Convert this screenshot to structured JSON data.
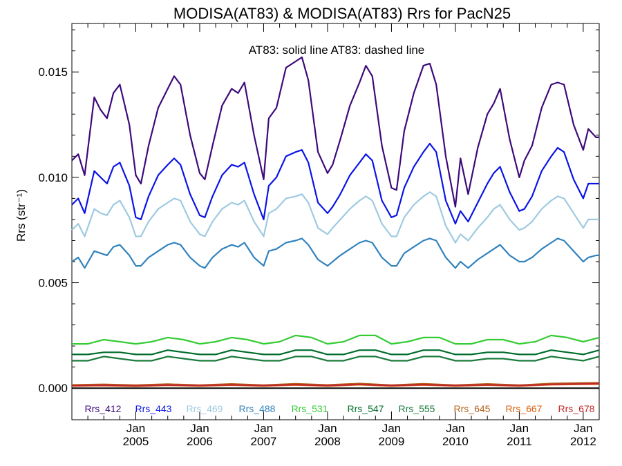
{
  "chart_data": {
    "type": "line",
    "title": "MODISA(AT83) & MODISA(AT83)  Rrs for PacN25",
    "annotation": "AT83: solid line   AT83: dashed line",
    "ylabel": "Rrs (str⁻¹)",
    "xlabel": "",
    "ylim": [
      -0.0015,
      0.0173
    ],
    "yticks": [
      0.0,
      0.005,
      0.01,
      0.015
    ],
    "ytick_labels": [
      "0.000",
      "0.005",
      "0.010",
      "0.015"
    ],
    "xlim": [
      2004.0,
      2012.25
    ],
    "xticks": [
      2005,
      2006,
      2007,
      2008,
      2009,
      2010,
      2011,
      2012
    ],
    "xtick_labels": [
      {
        "month": "Jan",
        "year": "2005"
      },
      {
        "month": "Jan",
        "year": "2006"
      },
      {
        "month": "Jan",
        "year": "2007"
      },
      {
        "month": "Jan",
        "year": "2008"
      },
      {
        "month": "Jan",
        "year": "2009"
      },
      {
        "month": "Jan",
        "year": "2010"
      },
      {
        "month": "Jan",
        "year": "2011"
      },
      {
        "month": "Jan",
        "year": "2012"
      }
    ],
    "zero_line": 0.0,
    "series": [
      {
        "name": "Rrs_412",
        "color": "#3d0a7a",
        "x": [
          2004.0,
          2004.1,
          2004.2,
          2004.35,
          2004.45,
          2004.55,
          2004.65,
          2004.75,
          2004.9,
          2005.0,
          2005.08,
          2005.2,
          2005.35,
          2005.5,
          2005.6,
          2005.7,
          2005.85,
          2006.0,
          2006.08,
          2006.2,
          2006.35,
          2006.5,
          2006.6,
          2006.7,
          2006.85,
          2007.0,
          2007.08,
          2007.2,
          2007.35,
          2007.5,
          2007.6,
          2007.7,
          2007.85,
          2008.0,
          2008.08,
          2008.2,
          2008.35,
          2008.5,
          2008.6,
          2008.7,
          2008.85,
          2009.0,
          2009.08,
          2009.2,
          2009.35,
          2009.5,
          2009.6,
          2009.7,
          2009.85,
          2010.0,
          2010.08,
          2010.2,
          2010.35,
          2010.5,
          2010.6,
          2010.7,
          2010.85,
          2011.0,
          2011.08,
          2011.2,
          2011.35,
          2011.5,
          2011.6,
          2011.7,
          2011.85,
          2012.0,
          2012.08,
          2012.2,
          2012.25
        ],
        "values": [
          0.0108,
          0.0111,
          0.0101,
          0.0138,
          0.0132,
          0.0128,
          0.014,
          0.0144,
          0.0125,
          0.0101,
          0.0097,
          0.0115,
          0.0133,
          0.0142,
          0.0148,
          0.0144,
          0.012,
          0.0102,
          0.0099,
          0.0115,
          0.0134,
          0.0142,
          0.014,
          0.0145,
          0.012,
          0.0099,
          0.0128,
          0.0133,
          0.0152,
          0.0155,
          0.0157,
          0.0146,
          0.0112,
          0.0102,
          0.0106,
          0.0118,
          0.0134,
          0.0145,
          0.0153,
          0.0148,
          0.0115,
          0.0095,
          0.0094,
          0.0122,
          0.014,
          0.0153,
          0.0154,
          0.0144,
          0.011,
          0.0086,
          0.0109,
          0.0092,
          0.0114,
          0.013,
          0.0135,
          0.0142,
          0.0118,
          0.01,
          0.0108,
          0.0115,
          0.0133,
          0.0144,
          0.0145,
          0.0144,
          0.0125,
          0.0113,
          0.0123,
          0.0119,
          0.0119
        ]
      },
      {
        "name": "Rrs_443",
        "color": "#0a14e6",
        "x": [
          2004.0,
          2004.1,
          2004.2,
          2004.35,
          2004.45,
          2004.55,
          2004.65,
          2004.75,
          2004.9,
          2005.0,
          2005.08,
          2005.2,
          2005.35,
          2005.5,
          2005.6,
          2005.7,
          2005.85,
          2006.0,
          2006.08,
          2006.2,
          2006.35,
          2006.5,
          2006.6,
          2006.7,
          2006.85,
          2007.0,
          2007.08,
          2007.2,
          2007.35,
          2007.5,
          2007.6,
          2007.7,
          2007.85,
          2008.0,
          2008.08,
          2008.2,
          2008.35,
          2008.5,
          2008.6,
          2008.7,
          2008.85,
          2009.0,
          2009.08,
          2009.2,
          2009.35,
          2009.5,
          2009.6,
          2009.7,
          2009.85,
          2010.0,
          2010.08,
          2010.2,
          2010.35,
          2010.5,
          2010.6,
          2010.7,
          2010.85,
          2011.0,
          2011.08,
          2011.2,
          2011.35,
          2011.5,
          2011.6,
          2011.7,
          2011.85,
          2012.0,
          2012.08,
          2012.2,
          2012.25
        ],
        "values": [
          0.0087,
          0.009,
          0.0083,
          0.0103,
          0.01,
          0.0097,
          0.0105,
          0.0107,
          0.0096,
          0.0081,
          0.008,
          0.0091,
          0.0101,
          0.0106,
          0.0109,
          0.0106,
          0.0092,
          0.0082,
          0.0081,
          0.0091,
          0.0101,
          0.0106,
          0.0105,
          0.0107,
          0.0092,
          0.008,
          0.0096,
          0.01,
          0.011,
          0.0112,
          0.0113,
          0.0107,
          0.0088,
          0.0083,
          0.0086,
          0.0092,
          0.0101,
          0.0107,
          0.0111,
          0.0108,
          0.0089,
          0.0081,
          0.0082,
          0.0095,
          0.0105,
          0.0112,
          0.0116,
          0.0112,
          0.0089,
          0.0078,
          0.0084,
          0.0079,
          0.0088,
          0.0097,
          0.0102,
          0.0105,
          0.0093,
          0.0084,
          0.0085,
          0.0091,
          0.0103,
          0.011,
          0.0114,
          0.0112,
          0.0099,
          0.009,
          0.0097,
          0.0097,
          0.0097
        ]
      },
      {
        "name": "Rrs_469",
        "color": "#9ecae1",
        "x": [
          2004.0,
          2004.1,
          2004.2,
          2004.35,
          2004.45,
          2004.55,
          2004.65,
          2004.75,
          2004.9,
          2005.0,
          2005.08,
          2005.2,
          2005.35,
          2005.5,
          2005.6,
          2005.7,
          2005.85,
          2006.0,
          2006.08,
          2006.2,
          2006.35,
          2006.5,
          2006.6,
          2006.7,
          2006.85,
          2007.0,
          2007.08,
          2007.2,
          2007.35,
          2007.5,
          2007.6,
          2007.7,
          2007.85,
          2008.0,
          2008.08,
          2008.2,
          2008.35,
          2008.5,
          2008.6,
          2008.7,
          2008.85,
          2009.0,
          2009.08,
          2009.2,
          2009.35,
          2009.5,
          2009.6,
          2009.7,
          2009.85,
          2010.0,
          2010.08,
          2010.2,
          2010.35,
          2010.5,
          2010.6,
          2010.7,
          2010.85,
          2011.0,
          2011.08,
          2011.2,
          2011.35,
          2011.5,
          2011.6,
          2011.7,
          2011.85,
          2012.0,
          2012.08,
          2012.2,
          2012.25
        ],
        "values": [
          0.0075,
          0.0078,
          0.0072,
          0.0085,
          0.0083,
          0.0082,
          0.0087,
          0.0089,
          0.0081,
          0.0072,
          0.0072,
          0.0079,
          0.0085,
          0.0088,
          0.009,
          0.0089,
          0.0079,
          0.0073,
          0.0072,
          0.0079,
          0.0085,
          0.0088,
          0.0087,
          0.0089,
          0.0079,
          0.0072,
          0.0083,
          0.0085,
          0.009,
          0.0091,
          0.0092,
          0.0088,
          0.0076,
          0.0073,
          0.0076,
          0.008,
          0.0085,
          0.0089,
          0.0091,
          0.0089,
          0.0078,
          0.0072,
          0.0072,
          0.0081,
          0.0087,
          0.0091,
          0.0093,
          0.0091,
          0.0077,
          0.0069,
          0.0073,
          0.007,
          0.0076,
          0.0081,
          0.0085,
          0.0087,
          0.008,
          0.0075,
          0.0076,
          0.0079,
          0.0085,
          0.0089,
          0.0091,
          0.009,
          0.0083,
          0.0076,
          0.008,
          0.008,
          0.008
        ]
      },
      {
        "name": "Rrs_488",
        "color": "#3182bd",
        "x": [
          2004.0,
          2004.1,
          2004.2,
          2004.35,
          2004.45,
          2004.55,
          2004.65,
          2004.75,
          2004.9,
          2005.0,
          2005.08,
          2005.2,
          2005.35,
          2005.5,
          2005.6,
          2005.7,
          2005.85,
          2006.0,
          2006.08,
          2006.2,
          2006.35,
          2006.5,
          2006.6,
          2006.7,
          2006.85,
          2007.0,
          2007.08,
          2007.2,
          2007.35,
          2007.5,
          2007.6,
          2007.7,
          2007.85,
          2008.0,
          2008.08,
          2008.2,
          2008.35,
          2008.5,
          2008.6,
          2008.7,
          2008.85,
          2009.0,
          2009.08,
          2009.2,
          2009.35,
          2009.5,
          2009.6,
          2009.7,
          2009.85,
          2010.0,
          2010.08,
          2010.2,
          2010.35,
          2010.5,
          2010.6,
          2010.7,
          2010.85,
          2011.0,
          2011.08,
          2011.2,
          2011.35,
          2011.5,
          2011.6,
          2011.7,
          2011.85,
          2012.0,
          2012.08,
          2012.2,
          2012.25
        ],
        "values": [
          0.006,
          0.0062,
          0.0057,
          0.0065,
          0.0064,
          0.0063,
          0.0067,
          0.0068,
          0.0063,
          0.0058,
          0.0058,
          0.0062,
          0.0065,
          0.0068,
          0.0069,
          0.0068,
          0.0062,
          0.0058,
          0.0057,
          0.0062,
          0.0066,
          0.0068,
          0.0067,
          0.0069,
          0.0062,
          0.0058,
          0.0065,
          0.0066,
          0.0069,
          0.007,
          0.0071,
          0.0068,
          0.0061,
          0.0058,
          0.006,
          0.0063,
          0.0066,
          0.0069,
          0.007,
          0.0069,
          0.0062,
          0.0058,
          0.0058,
          0.0064,
          0.0067,
          0.007,
          0.0071,
          0.007,
          0.0062,
          0.0057,
          0.006,
          0.0057,
          0.0061,
          0.0064,
          0.0066,
          0.0068,
          0.0063,
          0.006,
          0.006,
          0.0062,
          0.0066,
          0.0069,
          0.0071,
          0.007,
          0.0065,
          0.006,
          0.0062,
          0.0063,
          0.0063
        ]
      },
      {
        "name": "Rrs_531",
        "color": "#33cc33",
        "x": [
          2004.0,
          2004.25,
          2004.5,
          2004.75,
          2005.0,
          2005.25,
          2005.5,
          2005.75,
          2006.0,
          2006.25,
          2006.5,
          2006.75,
          2007.0,
          2007.25,
          2007.5,
          2007.75,
          2008.0,
          2008.25,
          2008.5,
          2008.75,
          2009.0,
          2009.25,
          2009.5,
          2009.75,
          2010.0,
          2010.25,
          2010.5,
          2010.75,
          2011.0,
          2011.25,
          2011.5,
          2011.75,
          2012.0,
          2012.25
        ],
        "values": [
          0.0021,
          0.0021,
          0.0023,
          0.0022,
          0.0021,
          0.0022,
          0.0024,
          0.0023,
          0.0021,
          0.0022,
          0.0024,
          0.0023,
          0.0021,
          0.0022,
          0.0025,
          0.0024,
          0.0021,
          0.0022,
          0.0025,
          0.0025,
          0.0021,
          0.0022,
          0.0024,
          0.0024,
          0.0021,
          0.0021,
          0.0023,
          0.0023,
          0.0021,
          0.0022,
          0.0025,
          0.0024,
          0.0022,
          0.0024
        ]
      },
      {
        "name": "Rrs_547",
        "color": "#006d2c",
        "x": [
          2004.0,
          2004.25,
          2004.5,
          2004.75,
          2005.0,
          2005.25,
          2005.5,
          2005.75,
          2006.0,
          2006.25,
          2006.5,
          2006.75,
          2007.0,
          2007.25,
          2007.5,
          2007.75,
          2008.0,
          2008.25,
          2008.5,
          2008.75,
          2009.0,
          2009.25,
          2009.5,
          2009.75,
          2010.0,
          2010.25,
          2010.5,
          2010.75,
          2011.0,
          2011.25,
          2011.5,
          2011.75,
          2012.0,
          2012.25
        ],
        "values": [
          0.0016,
          0.0016,
          0.0017,
          0.0017,
          0.0016,
          0.0016,
          0.0018,
          0.0017,
          0.0016,
          0.0016,
          0.0018,
          0.0017,
          0.0016,
          0.0016,
          0.0018,
          0.0018,
          0.0016,
          0.0016,
          0.0018,
          0.0018,
          0.0016,
          0.0016,
          0.0018,
          0.0018,
          0.0016,
          0.0016,
          0.0017,
          0.0017,
          0.0016,
          0.0016,
          0.0018,
          0.0017,
          0.0016,
          0.0018
        ]
      },
      {
        "name": "Rrs_555",
        "color": "#1a7a3c",
        "x": [
          2004.0,
          2004.25,
          2004.5,
          2004.75,
          2005.0,
          2005.25,
          2005.5,
          2005.75,
          2006.0,
          2006.25,
          2006.5,
          2006.75,
          2007.0,
          2007.25,
          2007.5,
          2007.75,
          2008.0,
          2008.25,
          2008.5,
          2008.75,
          2009.0,
          2009.25,
          2009.5,
          2009.75,
          2010.0,
          2010.25,
          2010.5,
          2010.75,
          2011.0,
          2011.25,
          2011.5,
          2011.75,
          2012.0,
          2012.25
        ],
        "values": [
          0.0013,
          0.0013,
          0.0015,
          0.0014,
          0.0013,
          0.0013,
          0.0015,
          0.0014,
          0.0013,
          0.0013,
          0.0015,
          0.0014,
          0.0013,
          0.0013,
          0.0015,
          0.0015,
          0.0013,
          0.0013,
          0.0015,
          0.0015,
          0.0013,
          0.0013,
          0.0015,
          0.0015,
          0.0013,
          0.0013,
          0.0014,
          0.0014,
          0.0013,
          0.0013,
          0.0015,
          0.0014,
          0.0013,
          0.0015
        ]
      },
      {
        "name": "Rrs_645",
        "color": "#b5651d",
        "x": [
          2004.0,
          2004.5,
          2005.0,
          2005.5,
          2006.0,
          2006.5,
          2007.0,
          2007.5,
          2008.0,
          2008.5,
          2009.0,
          2009.5,
          2010.0,
          2010.5,
          2011.0,
          2011.5,
          2012.0,
          2012.25
        ],
        "values": [
          0.00015,
          0.00018,
          0.00014,
          0.00019,
          0.00014,
          0.0002,
          0.00014,
          0.00021,
          0.00015,
          0.00022,
          0.00014,
          0.00021,
          0.00014,
          0.0002,
          0.00014,
          0.00022,
          0.00025,
          0.00026
        ]
      },
      {
        "name": "Rrs_667",
        "color": "#d95f0e",
        "x": [
          2004.0,
          2004.5,
          2005.0,
          2005.5,
          2006.0,
          2006.5,
          2007.0,
          2007.5,
          2008.0,
          2008.5,
          2009.0,
          2009.5,
          2010.0,
          2010.5,
          2011.0,
          2011.5,
          2012.0,
          2012.25
        ],
        "values": [
          0.0001,
          0.00012,
          9e-05,
          0.00013,
          0.0001,
          0.00014,
          0.0001,
          0.00015,
          0.0001,
          0.00016,
          0.0001,
          0.00015,
          0.0001,
          0.00014,
          0.0001,
          0.00016,
          0.00018,
          0.00019
        ]
      },
      {
        "name": "Rrs_678",
        "color": "#c0282c",
        "x": [
          2004.0,
          2004.5,
          2005.0,
          2005.5,
          2006.0,
          2006.5,
          2007.0,
          2007.5,
          2008.0,
          2008.5,
          2009.0,
          2009.5,
          2010.0,
          2010.5,
          2011.0,
          2011.5,
          2012.0,
          2012.25
        ],
        "values": [
          0.00012,
          0.00014,
          0.00011,
          0.00015,
          0.00012,
          0.00016,
          0.00012,
          0.00017,
          0.00012,
          0.00018,
          0.00012,
          0.00017,
          0.00012,
          0.00016,
          0.00012,
          0.00018,
          0.0002,
          0.00021
        ]
      }
    ]
  }
}
